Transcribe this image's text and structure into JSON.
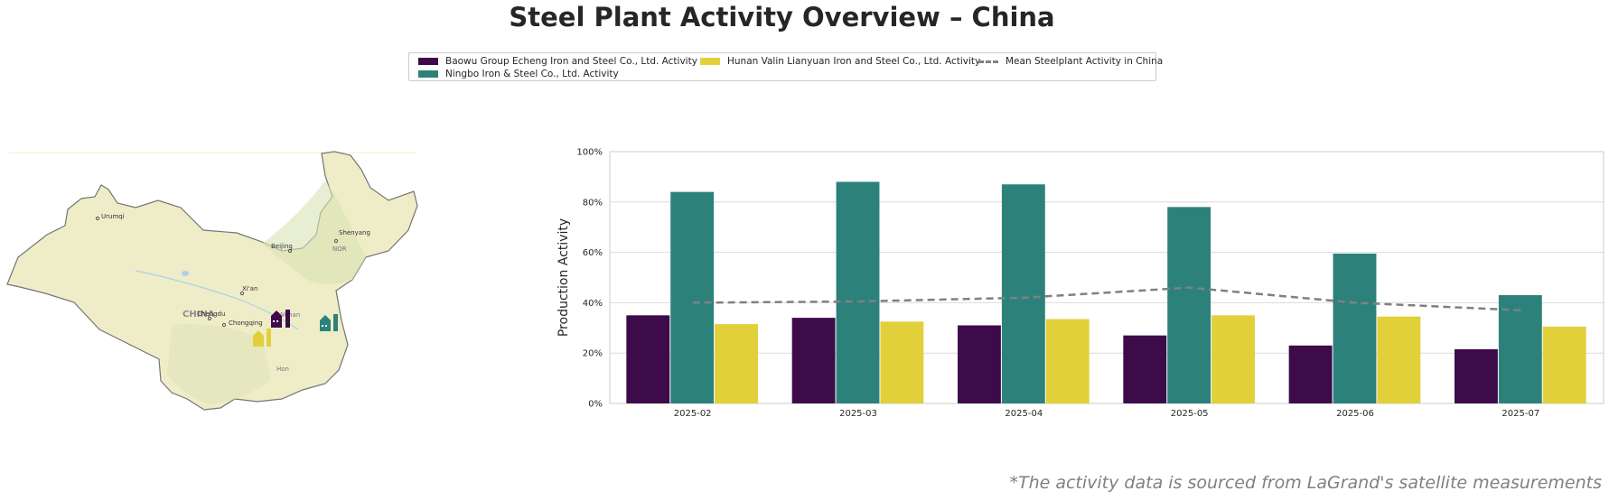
{
  "title": "Steel Plant Activity Overview – China",
  "footnote": "*The activity data is sourced from LaGrand's satellite measurements",
  "legend": {
    "items": [
      {
        "label": "Baowu Group Echeng Iron and Steel Co., Ltd. Activity",
        "color": "#3d0a4a",
        "kind": "bar"
      },
      {
        "label": "Ningbo Iron & Steel Co., Ltd. Activity",
        "color": "#2c827b",
        "kind": "bar"
      },
      {
        "label": "Hunan Valin Lianyuan Iron and Steel Co., Ltd. Activity",
        "color": "#e1d03a",
        "kind": "bar"
      },
      {
        "label": "Mean Steelplant Activity in China",
        "color": "#808080",
        "kind": "dashed-line"
      }
    ]
  },
  "map": {
    "country_label": "CHINA",
    "cities": [
      "Urumqi",
      "Beijing",
      "Shenyang",
      "Xi'an",
      "Chengdu",
      "Chongqing",
      "Wuhan",
      "NOR",
      "Hon"
    ],
    "plant_icon_colors": [
      "#3d0a4a",
      "#e1d03a",
      "#2c827b"
    ]
  },
  "chart_data": {
    "type": "bar",
    "categories": [
      "2025-02",
      "2025-03",
      "2025-04",
      "2025-05",
      "2025-06",
      "2025-07"
    ],
    "series": [
      {
        "name": "Baowu Group Echeng Iron and Steel Co., Ltd. Activity",
        "color": "#3d0a4a",
        "values": [
          35,
          34,
          31,
          27,
          23,
          21.5
        ]
      },
      {
        "name": "Ningbo Iron & Steel Co., Ltd. Activity",
        "color": "#2c827b",
        "values": [
          84,
          88,
          87,
          78,
          59.5,
          43
        ]
      },
      {
        "name": "Hunan Valin Lianyuan Iron and Steel Co., Ltd. Activity",
        "color": "#e1d03a",
        "values": [
          31.5,
          32.5,
          33.5,
          35,
          34.5,
          30.5
        ]
      }
    ],
    "line": {
      "name": "Mean Steelplant Activity in China",
      "color": "#808080",
      "values": [
        40,
        40.5,
        42,
        46,
        40,
        37
      ]
    },
    "ylabel": "Production Activity",
    "xlabel": "",
    "ylim": [
      0,
      100
    ],
    "yticks": [
      0,
      20,
      40,
      60,
      80,
      100
    ],
    "ytick_labels": [
      "0%",
      "20%",
      "40%",
      "60%",
      "80%",
      "100%"
    ],
    "grid": "horizontal",
    "legend_position": "top-center"
  }
}
